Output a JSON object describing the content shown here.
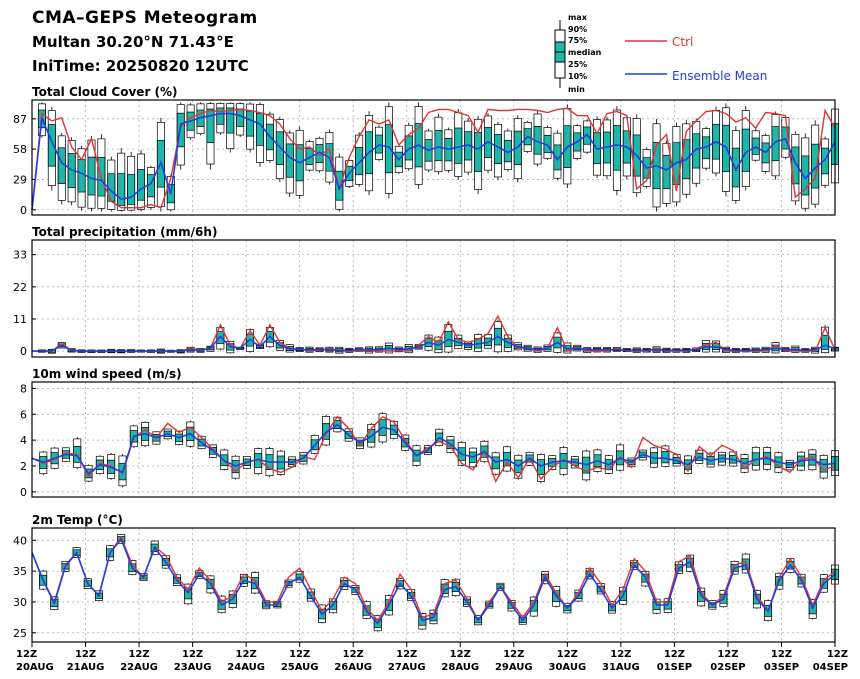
{
  "header": {
    "title": "CMA–GEPS Meteogram",
    "location": "Multan 30.20°N 71.43°E",
    "init_time": "IniTime: 20250820 12UTC"
  },
  "legend": {
    "box_labels": [
      "max",
      "90%",
      "75%",
      "median",
      "25%",
      "10%",
      "min"
    ],
    "ctrl_label": "Ctrl",
    "mean_label": "Ensemble Mean"
  },
  "colors": {
    "ctrl": "#e03535",
    "mean": "#1f3fe0",
    "box_fill": "#1fb5a8",
    "box_edge": "#000000",
    "grid": "#b0b0b0"
  },
  "x_axis": {
    "hour_label": "12Z",
    "dates": [
      "20AUG",
      "21AUG",
      "22AUG",
      "23AUG",
      "24AUG",
      "25AUG",
      "26AUG",
      "27AUG",
      "28AUG",
      "29AUG",
      "30AUG",
      "31AUG",
      "01SEP",
      "02SEP",
      "03SEP",
      "04SEP"
    ],
    "steps_per_day": 4
  },
  "chart_data": [
    {
      "type": "box",
      "title": "Total Cloud Cover (%)",
      "ylim": [
        -5,
        105
      ],
      "yticks": [
        0,
        29,
        58,
        87
      ],
      "grid": true,
      "series": [
        {
          "name": "Ctrl",
          "values": [
            0,
            92,
            85,
            88,
            60,
            48,
            68,
            30,
            8,
            2,
            2,
            2,
            5,
            2,
            30,
            80,
            88,
            92,
            95,
            94,
            95,
            96,
            95,
            93,
            90,
            82,
            68,
            58,
            60,
            52,
            58,
            20,
            50,
            70,
            86,
            82,
            86,
            62,
            72,
            78,
            93,
            96,
            96,
            93,
            90,
            74,
            96,
            95,
            95,
            96,
            96,
            95,
            93,
            96,
            97,
            90,
            90,
            73,
            92,
            94,
            90,
            20,
            28,
            62,
            72,
            18,
            75,
            85,
            94,
            95,
            92,
            84,
            88,
            78,
            93,
            92,
            90,
            12,
            20,
            30,
            95,
            78
          ]
        },
        {
          "name": "Ensemble Mean",
          "values": [
            0,
            88,
            65,
            45,
            38,
            35,
            30,
            28,
            18,
            10,
            12,
            20,
            25,
            45,
            15,
            82,
            85,
            88,
            90,
            92,
            92,
            90,
            86,
            82,
            70,
            60,
            50,
            45,
            50,
            55,
            50,
            20,
            35,
            45,
            55,
            62,
            60,
            48,
            58,
            62,
            57,
            60,
            58,
            60,
            62,
            58,
            65,
            60,
            55,
            60,
            70,
            65,
            62,
            48,
            60,
            65,
            72,
            58,
            60,
            62,
            60,
            52,
            40,
            42,
            38,
            45,
            48,
            58,
            60,
            65,
            60,
            38,
            55,
            60,
            55,
            65,
            68,
            45,
            30,
            40,
            48,
            65
          ]
        }
      ]
    },
    {
      "type": "box",
      "title": "Total precipitation (mm/6h)",
      "ylim": [
        -2,
        38
      ],
      "yticks": [
        0,
        11,
        22,
        33
      ],
      "grid": true,
      "series": [
        {
          "name": "Ctrl",
          "values": [
            0,
            0,
            0,
            2.5,
            0.3,
            0,
            0,
            0,
            0,
            0,
            0,
            0,
            0,
            0,
            0,
            0,
            1,
            0.4,
            1,
            9,
            2,
            1,
            7,
            2,
            9,
            3,
            1,
            0.5,
            0.3,
            0.2,
            1,
            0,
            0,
            0,
            0,
            0,
            0,
            0,
            0,
            2,
            5,
            3,
            10,
            4,
            3,
            4,
            6,
            12,
            5,
            1,
            1,
            0,
            1,
            8,
            0,
            1,
            0,
            0,
            0,
            1,
            0,
            0,
            0,
            1,
            0,
            0,
            0,
            1,
            2,
            3,
            0,
            0,
            0,
            0,
            0,
            2,
            0,
            0,
            0,
            0,
            8,
            0.5
          ]
        },
        {
          "name": "Ensemble Mean",
          "values": [
            0,
            0,
            0,
            2,
            0.2,
            0,
            0,
            0,
            0,
            0,
            0,
            0,
            0,
            0,
            0,
            0,
            0.5,
            0.3,
            1,
            5,
            1.5,
            1,
            4,
            1.5,
            5,
            2,
            0.8,
            0.5,
            0.5,
            0.5,
            0.5,
            0.3,
            0.3,
            0.5,
            0.5,
            0.5,
            1,
            0.5,
            0.8,
            1.5,
            3,
            2,
            4,
            3,
            2,
            2.5,
            3,
            5,
            3,
            1.5,
            1,
            0.5,
            1,
            3,
            0.8,
            1,
            0.5,
            0.5,
            0.5,
            0.5,
            0.3,
            0.3,
            0.3,
            0.5,
            0.3,
            0.3,
            0.3,
            0.5,
            1.5,
            1.5,
            0.5,
            0.3,
            0.3,
            0.3,
            0.5,
            1,
            0.5,
            0.5,
            0.3,
            0.5,
            2,
            0.8
          ]
        }
      ]
    },
    {
      "type": "box",
      "title": "10m wind speed (m/s)",
      "ylim": [
        -0.4,
        8.5
      ],
      "yticks": [
        0,
        2,
        4,
        6,
        8
      ],
      "grid": true,
      "series": [
        {
          "name": "Ctrl",
          "values": [
            2.6,
            2.2,
            2.5,
            3.0,
            2.9,
            1.2,
            2.2,
            2.0,
            1.4,
            4.2,
            4.8,
            4.2,
            5.3,
            4.6,
            5.0,
            4.2,
            3.3,
            2.4,
            1.6,
            2.3,
            2.5,
            1.8,
            1.5,
            1.9,
            2.7,
            2.5,
            4.5,
            5.8,
            4.9,
            3.6,
            4.9,
            5.8,
            5.4,
            4.0,
            2.8,
            3.4,
            3.9,
            3.5,
            2.2,
            1.7,
            3.2,
            0.8,
            2.3,
            1.1,
            2.6,
            1.0,
            1.9,
            2.5,
            2.0,
            1.6,
            1.9,
            1.7,
            2.7,
            1.9,
            4.2,
            3.6,
            3.3,
            2.9,
            1.6,
            3.5,
            2.8,
            3.6,
            3.2,
            1.8,
            2.5,
            2.7,
            2.0,
            1.5,
            2.5,
            2.7,
            1.7,
            2.0
          ]
        },
        {
          "name": "Ensemble Mean",
          "values": [
            2.6,
            2.3,
            2.6,
            2.9,
            2.8,
            1.4,
            2.1,
            1.9,
            1.5,
            4.3,
            4.5,
            4.2,
            4.5,
            4.2,
            4.5,
            3.8,
            3.2,
            2.4,
            2.0,
            2.3,
            2.5,
            2.3,
            2.3,
            2.3,
            2.6,
            3.6,
            4.6,
            5.2,
            4.4,
            3.8,
            4.3,
            5.0,
            4.8,
            3.8,
            2.8,
            3.2,
            4.2,
            3.7,
            2.9,
            2.7,
            3.1,
            2.3,
            2.5,
            2.0,
            2.6,
            2.0,
            2.3,
            2.4,
            2.3,
            2.1,
            2.4,
            2.1,
            2.6,
            2.3,
            2.9,
            2.6,
            2.6,
            2.4,
            2.1,
            2.7,
            2.4,
            2.6,
            2.5,
            2.2,
            2.5,
            2.6,
            2.3,
            2.1,
            2.4,
            2.5,
            2.1,
            2.2
          ]
        }
      ]
    },
    {
      "type": "box",
      "title": "2m Temp (°C)",
      "ylim": [
        23.5,
        42
      ],
      "yticks": [
        25,
        30,
        35,
        40
      ],
      "grid": true,
      "series": [
        {
          "name": "Ctrl",
          "values": [
            38,
            33.5,
            30,
            36,
            38,
            33,
            31,
            38,
            40.5,
            36,
            34,
            39,
            37.5,
            34,
            32,
            35.5,
            33.5,
            30,
            31,
            34.5,
            33.5,
            30,
            30,
            34,
            35.5,
            32,
            28.5,
            30.5,
            34,
            33,
            29,
            27,
            30,
            34.5,
            32,
            27.5,
            28,
            33,
            33.5,
            30.5,
            27,
            30,
            32.5,
            30,
            27.5,
            30,
            34.5,
            31.5,
            29,
            31.5,
            35.5,
            33,
            29.5,
            32,
            37,
            35,
            30,
            30,
            36.5,
            37.5,
            31.5,
            29.5,
            31,
            36,
            36.5,
            31,
            28.5,
            34,
            37,
            34,
            29.5,
            33.5,
            35
          ]
        },
        {
          "name": "Ensemble Mean",
          "values": [
            38,
            33.5,
            29.8,
            35.8,
            38,
            33,
            31,
            38,
            40.2,
            35.5,
            34,
            38.8,
            36.5,
            33.5,
            31.5,
            34.5,
            33,
            29.5,
            30.5,
            33.5,
            33,
            29.5,
            29.5,
            33,
            34,
            31,
            28,
            29.5,
            33,
            32,
            28.5,
            26.5,
            29.5,
            33,
            31,
            27,
            27.5,
            32,
            32.5,
            30,
            27,
            29.5,
            32.5,
            29.5,
            27,
            29.5,
            34,
            31,
            29,
            31,
            34.5,
            32,
            29,
            31,
            36,
            34,
            29.5,
            29.5,
            35.5,
            36.5,
            31,
            29.5,
            30.5,
            35.5,
            36,
            30.5,
            28.5,
            33.5,
            36,
            33.5,
            29,
            33,
            34.5
          ]
        }
      ]
    }
  ]
}
